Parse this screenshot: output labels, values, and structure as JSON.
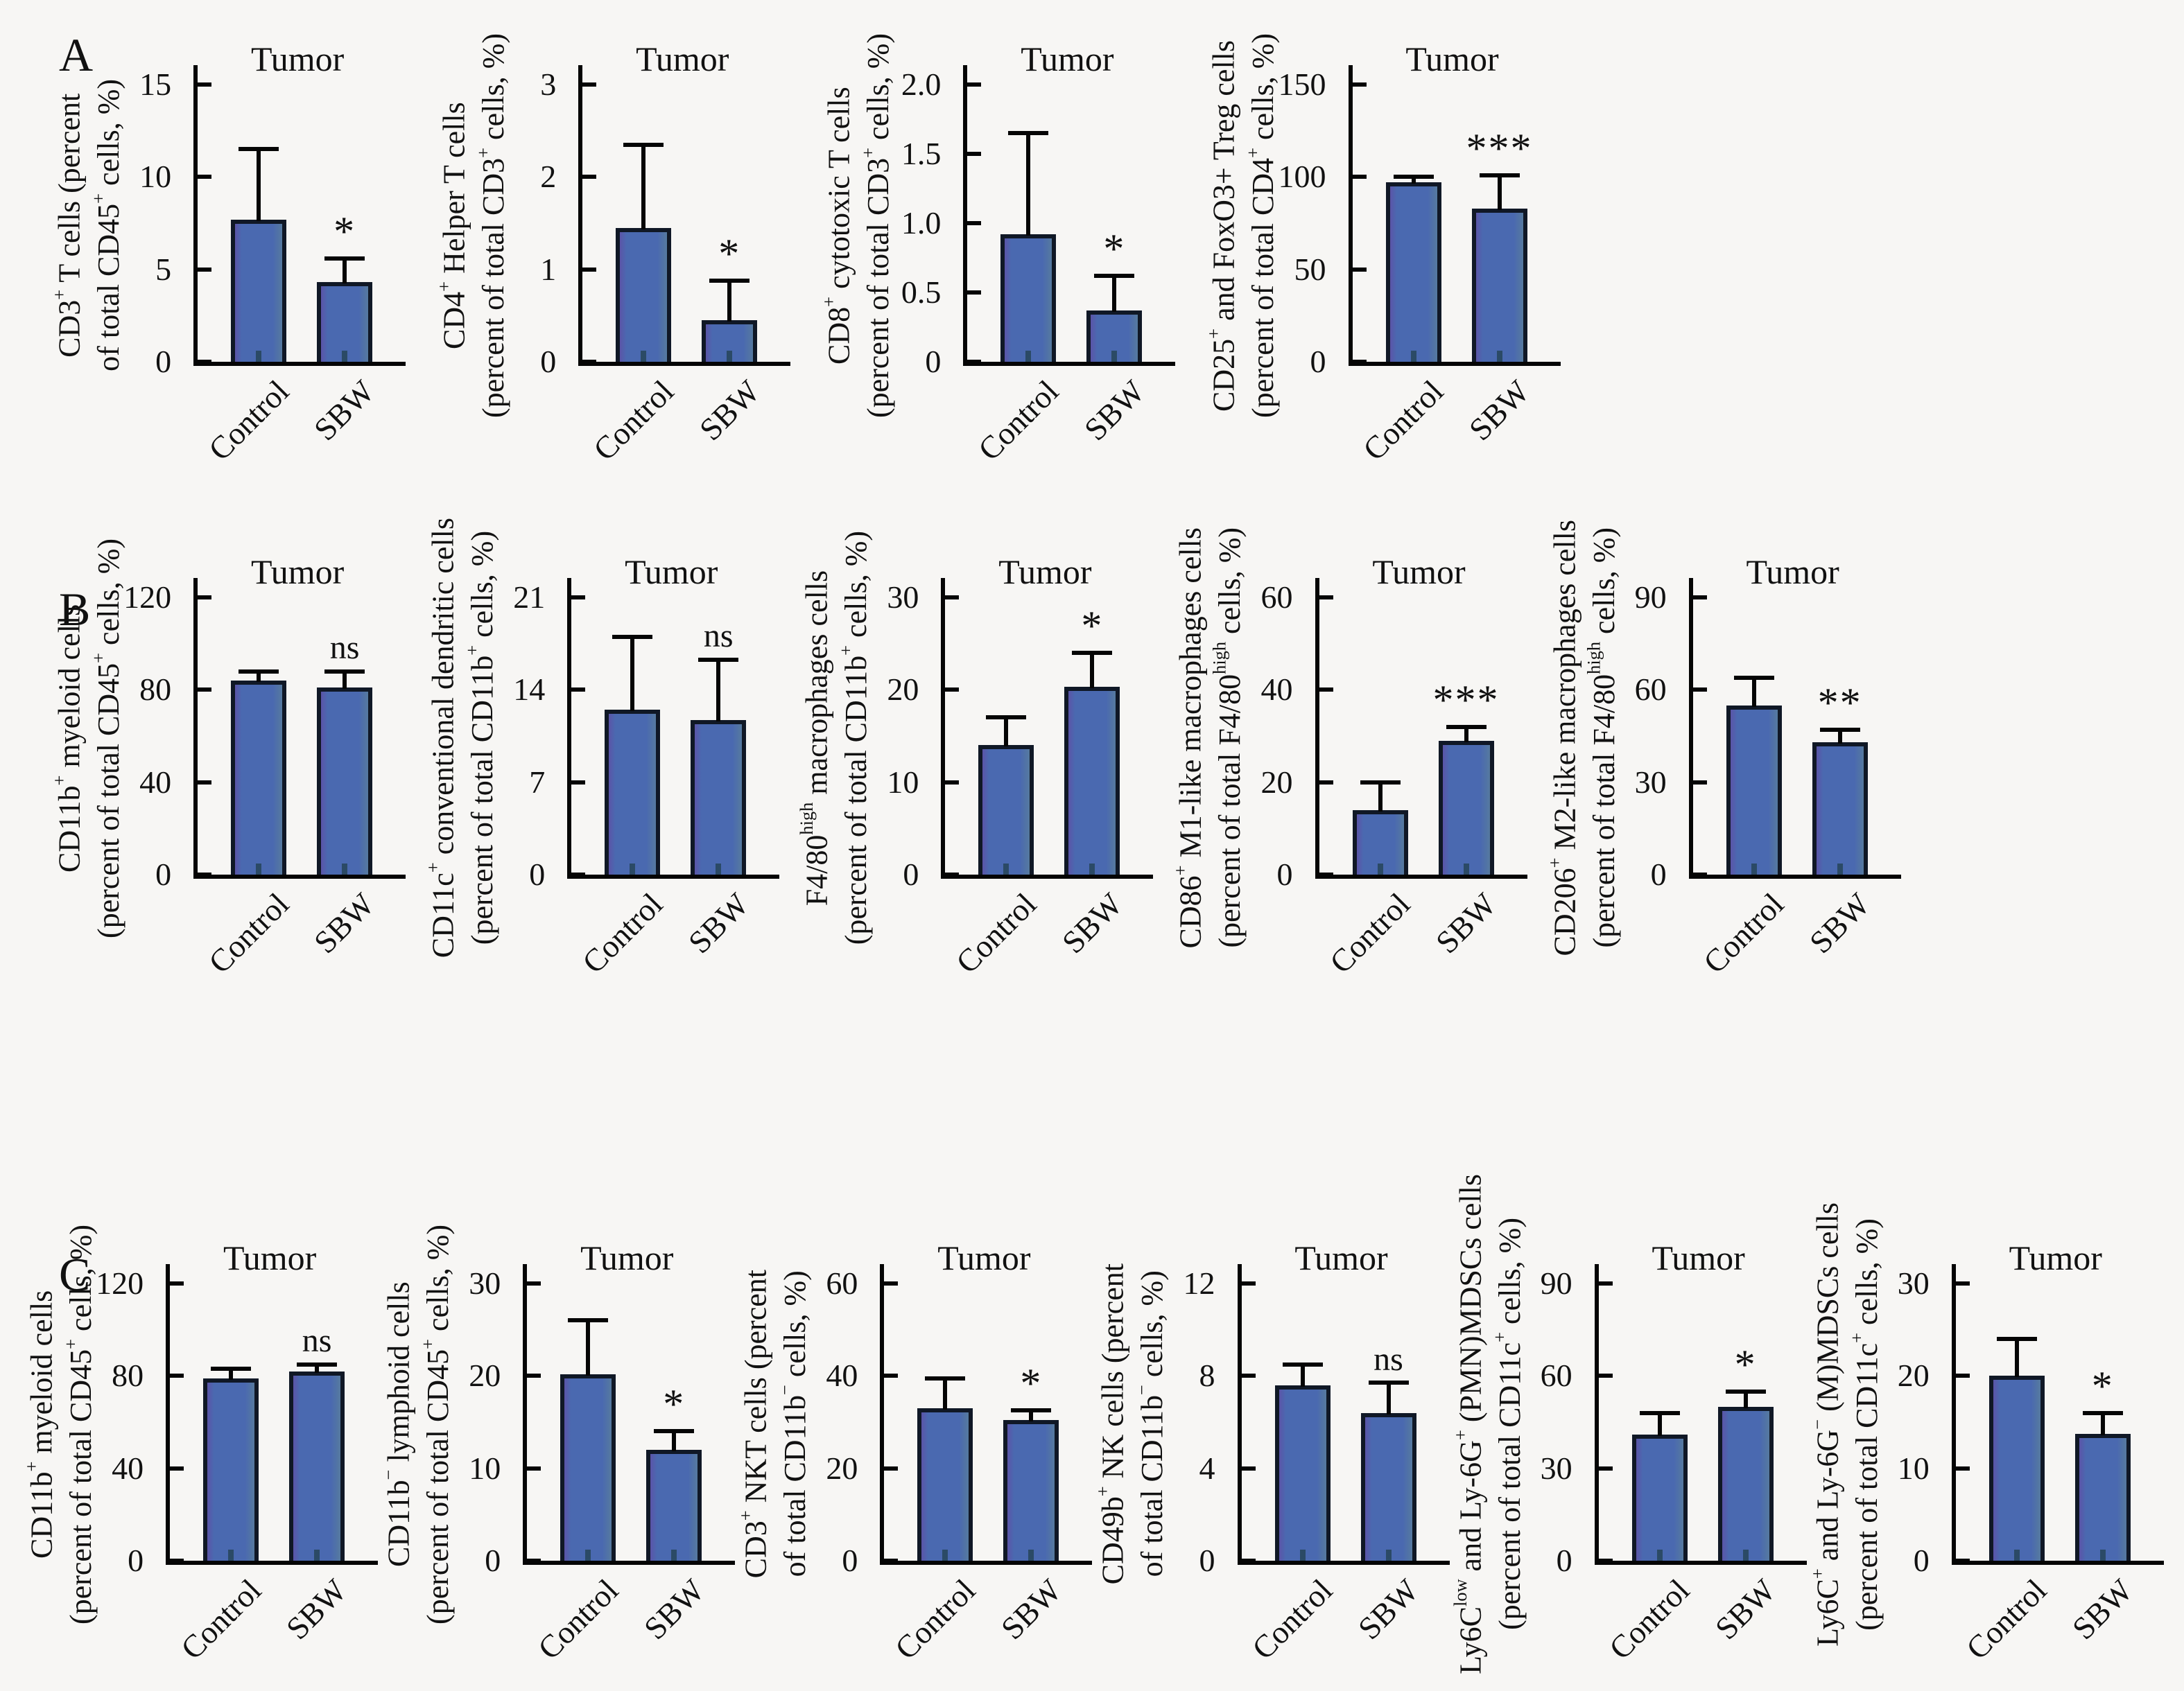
{
  "figure": {
    "panel_labels": [
      "A",
      "B",
      "C"
    ],
    "condition_labels": [
      "Control",
      "SBW"
    ],
    "plot_title": "Tumor"
  },
  "colors": {
    "bar_fill": "#4a69b0",
    "bar_fill_left_edge": "#5b54a8",
    "bar_fill_right_edge": "#567a9f",
    "bar_edge": "#101826",
    "axis": "#050505",
    "background": "#f7f6f4",
    "text": "#111111"
  },
  "chart_data": [
    {
      "panel": "A",
      "pos": 1,
      "type": "bar",
      "title": "Tumor",
      "categories": [
        "Control",
        "SBW"
      ],
      "ylabel_line1": "CD3^{+} T cells (percent",
      "ylabel_line2": "of total CD45^{+} cells, %)",
      "values": [
        7.7,
        4.3
      ],
      "errors_upper": [
        3.8,
        1.3
      ],
      "significance": "*",
      "sig_on": "SBW",
      "ytick_labels": [
        "0",
        "5",
        "10",
        "15"
      ],
      "ylim": [
        0,
        15
      ]
    },
    {
      "panel": "A",
      "pos": 2,
      "type": "bar",
      "title": "Tumor",
      "categories": [
        "Control",
        "SBW"
      ],
      "ylabel_line1": "CD4^{+} Helper T cells",
      "ylabel_line2": "(percent of total CD3^{+} cells, %)",
      "values": [
        1.45,
        0.45
      ],
      "errors_upper": [
        0.9,
        0.43
      ],
      "significance": "*",
      "sig_on": "SBW",
      "ytick_labels": [
        "0",
        "1",
        "2",
        "3"
      ],
      "ylim": [
        0,
        3
      ]
    },
    {
      "panel": "A",
      "pos": 3,
      "type": "bar",
      "title": "Tumor",
      "categories": [
        "Control",
        "SBW"
      ],
      "ylabel_line1": "CD8^{+} cytotoxic T cells",
      "ylabel_line2": "(percent of total CD3^{+} cells, %)",
      "values": [
        0.92,
        0.37
      ],
      "errors_upper": [
        0.73,
        0.25
      ],
      "significance": "*",
      "sig_on": "SBW",
      "ytick_labels": [
        "0",
        "0.5",
        "1.0",
        "1.5",
        "2.0"
      ],
      "ylim": [
        0,
        2
      ]
    },
    {
      "panel": "A",
      "pos": 4,
      "type": "bar",
      "title": "Tumor",
      "categories": [
        "Control",
        "SBW"
      ],
      "ylabel_line1": "CD25^{+} and FoxO3+ Treg cells",
      "ylabel_line2": "(percent of total CD4^{+} cells, %)",
      "values": [
        97,
        83
      ],
      "errors_upper": [
        3,
        18
      ],
      "significance": "***",
      "sig_on": "SBW",
      "ytick_labels": [
        "0",
        "50",
        "100",
        "150"
      ],
      "ylim": [
        0,
        150
      ]
    },
    {
      "panel": "B",
      "pos": 1,
      "type": "bar",
      "title": "Tumor",
      "categories": [
        "Control",
        "SBW"
      ],
      "ylabel_line1": "CD11b^{+} myeloid cells",
      "ylabel_line2": "(percent of total CD45^{+} cells, %)",
      "values": [
        84,
        81
      ],
      "errors_upper": [
        4,
        7
      ],
      "significance": "ns",
      "sig_on": "SBW",
      "ytick_labels": [
        "0",
        "40",
        "80",
        "120"
      ],
      "ylim": [
        0,
        120
      ]
    },
    {
      "panel": "B",
      "pos": 2,
      "type": "bar",
      "title": "Tumor",
      "categories": [
        "Control",
        "SBW"
      ],
      "ylabel_line1": "CD11c^{+} conventional dendritic cells",
      "ylabel_line2": "(percent of total CD11b^{+} cells, %)",
      "values": [
        12.5,
        11.7
      ],
      "errors_upper": [
        5.5,
        4.6
      ],
      "significance": "ns",
      "sig_on": "SBW",
      "ytick_labels": [
        "0",
        "7",
        "14",
        "21"
      ],
      "ylim": [
        0,
        21
      ]
    },
    {
      "panel": "B",
      "pos": 3,
      "type": "bar",
      "title": "Tumor",
      "categories": [
        "Control",
        "SBW"
      ],
      "ylabel_line1": "F4/80^{high} macrophages cells",
      "ylabel_line2": "(percent of total CD11b^{+} cells, %)",
      "values": [
        14,
        20.3
      ],
      "errors_upper": [
        3,
        3.7
      ],
      "significance": "*",
      "sig_on": "SBW",
      "ytick_labels": [
        "0",
        "10",
        "20",
        "30"
      ],
      "ylim": [
        0,
        30
      ]
    },
    {
      "panel": "B",
      "pos": 4,
      "type": "bar",
      "title": "Tumor",
      "categories": [
        "Control",
        "SBW"
      ],
      "ylabel_line1": "CD86^{+} M1-like macrophages cells",
      "ylabel_line2": "(percent of total F4/80^{high} cells, %)",
      "values": [
        14,
        29
      ],
      "errors_upper": [
        6,
        3
      ],
      "significance": "***",
      "sig_on": "SBW",
      "ytick_labels": [
        "0",
        "20",
        "40",
        "60"
      ],
      "ylim": [
        0,
        60
      ]
    },
    {
      "panel": "B",
      "pos": 5,
      "type": "bar",
      "title": "Tumor",
      "categories": [
        "Control",
        "SBW"
      ],
      "ylabel_line1": "CD206^{+} M2-like macrophages cells",
      "ylabel_line2": "(percent of total F4/80^{high} cells, %)",
      "values": [
        55,
        43
      ],
      "errors_upper": [
        9,
        4
      ],
      "significance": "**",
      "sig_on": "SBW",
      "ytick_labels": [
        "0",
        "30",
        "60",
        "90"
      ],
      "ylim": [
        0,
        90
      ]
    },
    {
      "panel": "C",
      "pos": 1,
      "type": "bar",
      "title": "Tumor",
      "categories": [
        "Control",
        "SBW"
      ],
      "ylabel_line1": "CD11b^{+} myeloid cells",
      "ylabel_line2": "(percent of total CD45^{+} cells, %)",
      "values": [
        79,
        82
      ],
      "errors_upper": [
        4,
        3
      ],
      "significance": "ns",
      "sig_on": "SBW",
      "ytick_labels": [
        "0",
        "40",
        "80",
        "120"
      ],
      "ylim": [
        0,
        120
      ]
    },
    {
      "panel": "C",
      "pos": 2,
      "type": "bar",
      "title": "Tumor",
      "categories": [
        "Control",
        "SBW"
      ],
      "ylabel_line1": "CD11b^{−} lymphoid cells",
      "ylabel_line2": "(percent of total CD45^{+} cells, %)",
      "values": [
        20.2,
        12
      ],
      "errors_upper": [
        5.8,
        2
      ],
      "significance": "*",
      "sig_on": "SBW",
      "ytick_labels": [
        "0",
        "10",
        "20",
        "30"
      ],
      "ylim": [
        0,
        30
      ]
    },
    {
      "panel": "C",
      "pos": 3,
      "type": "bar",
      "title": "Tumor",
      "categories": [
        "Control",
        "SBW"
      ],
      "ylabel_line1": "CD3^{+} NKT cells (percent",
      "ylabel_line2": "of total CD11b^{−} cells, %)",
      "values": [
        33,
        30.5
      ],
      "errors_upper": [
        6.5,
        2
      ],
      "significance": "*",
      "sig_on": "SBW",
      "ytick_labels": [
        "0",
        "20",
        "40",
        "60"
      ],
      "ylim": [
        0,
        60
      ]
    },
    {
      "panel": "C",
      "pos": 4,
      "type": "bar",
      "title": "Tumor",
      "categories": [
        "Control",
        "SBW"
      ],
      "ylabel_line1": "CD49b^{+} NK cells (percent",
      "ylabel_line2": "of total CD11b^{−} cells, %)",
      "values": [
        7.6,
        6.4
      ],
      "errors_upper": [
        0.9,
        1.3
      ],
      "significance": "ns",
      "sig_on": "SBW",
      "ytick_labels": [
        "0",
        "4",
        "8",
        "12"
      ],
      "ylim": [
        0,
        12
      ]
    },
    {
      "panel": "C",
      "pos": 5,
      "type": "bar",
      "title": "Tumor",
      "categories": [
        "Control",
        "SBW"
      ],
      "ylabel_line1": "Ly6C^{low} and Ly-6G^{+} (PMN)MDSCs cells",
      "ylabel_line2": "(percent of total CD11c^{+} cells, %)",
      "values": [
        41,
        50
      ],
      "errors_upper": [
        7,
        5
      ],
      "significance": "*",
      "sig_on": "SBW",
      "ytick_labels": [
        "0",
        "30",
        "60",
        "90"
      ],
      "ylim": [
        0,
        90
      ]
    },
    {
      "panel": "C",
      "pos": 6,
      "type": "bar",
      "title": "Tumor",
      "categories": [
        "Control",
        "SBW"
      ],
      "ylabel_line1": "Ly6C^{+} and Ly-6G^{−} (M)MDSCs cells",
      "ylabel_line2": "(percent of total CD11c^{+} cells, %)",
      "values": [
        20,
        13.7
      ],
      "errors_upper": [
        4,
        2.3
      ],
      "significance": "*",
      "sig_on": "SBW",
      "ytick_labels": [
        "0",
        "10",
        "20",
        "30"
      ],
      "ylim": [
        0,
        30
      ]
    }
  ]
}
